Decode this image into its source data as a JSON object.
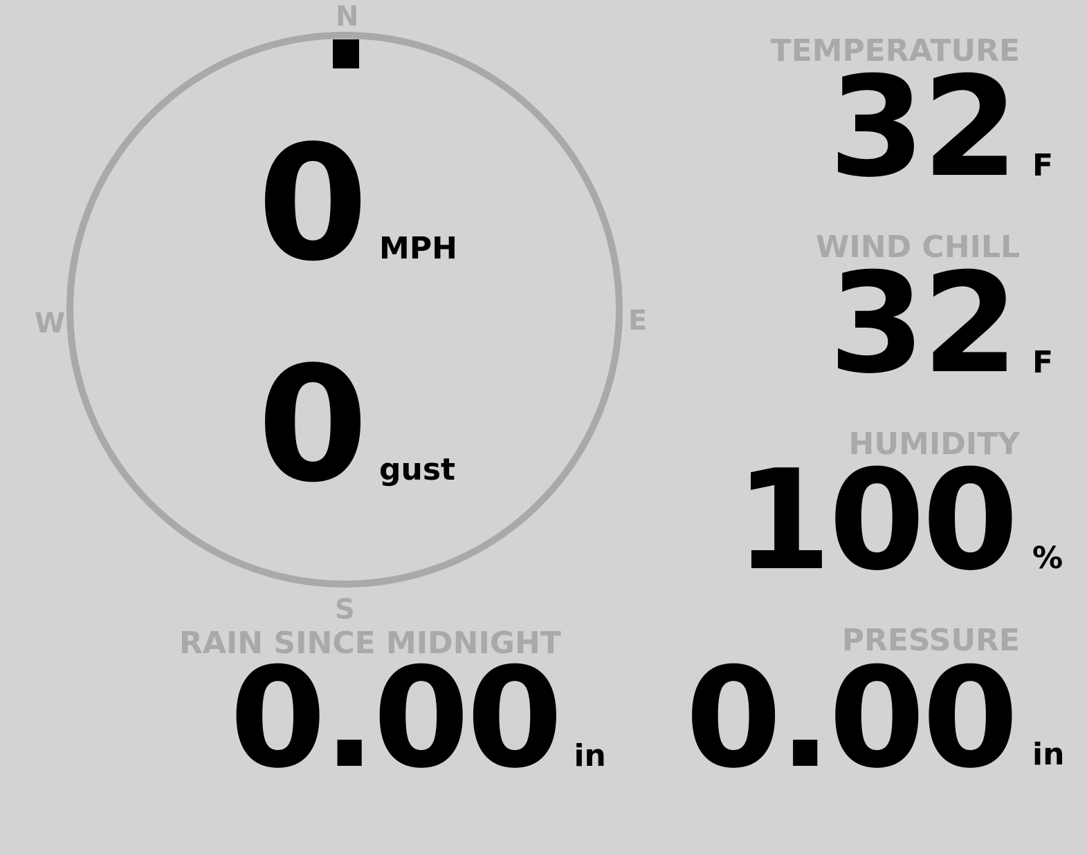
{
  "colors": {
    "background": "#d3d3d3",
    "muted": "#a9a9a9",
    "value": "#000000"
  },
  "compass": {
    "n": "N",
    "e": "E",
    "s": "S",
    "w": "W",
    "direction_degrees": 0
  },
  "wind": {
    "speed": "0",
    "speed_unit": "MPH",
    "gust": "0",
    "gust_unit": "gust"
  },
  "temperature": {
    "label": "TEMPERATURE",
    "value": "32",
    "unit": "F"
  },
  "wind_chill": {
    "label": "WIND CHILL",
    "value": "32",
    "unit": "F"
  },
  "humidity": {
    "label": "HUMIDITY",
    "value": "100",
    "unit": "%"
  },
  "rain": {
    "label": "RAIN SINCE MIDNIGHT",
    "value": "0.00",
    "unit": "in"
  },
  "pressure": {
    "label": "PRESSURE",
    "value": "0.00",
    "unit": "in"
  }
}
